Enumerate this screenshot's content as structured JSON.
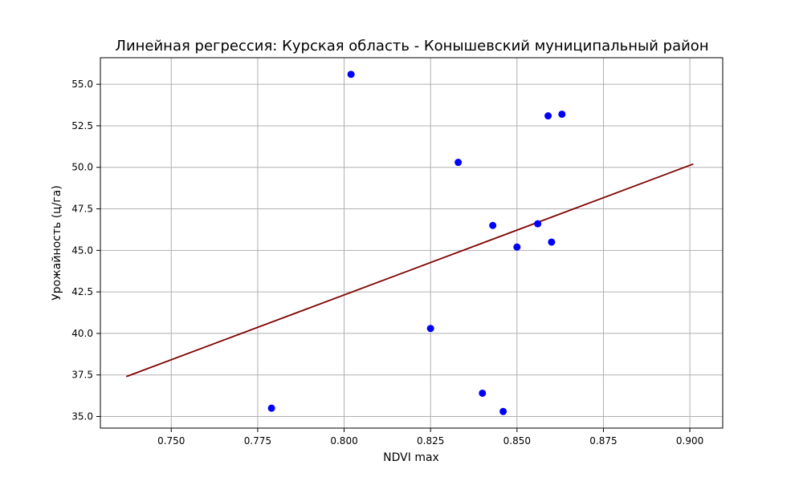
{
  "chart_data": {
    "type": "scatter",
    "title": "Линейная регрессия: Курская область - Конышевский муниципальный район",
    "xlabel": "NDVI max",
    "ylabel": "Урожайность (ц/га)",
    "xlim": [
      0.7295,
      0.9095
    ],
    "ylim": [
      34.3,
      56.6
    ],
    "xticks": [
      0.75,
      0.775,
      0.8,
      0.825,
      0.85,
      0.875,
      0.9
    ],
    "xtick_labels": [
      "0.750",
      "0.775",
      "0.800",
      "0.825",
      "0.850",
      "0.875",
      "0.900"
    ],
    "yticks": [
      35.0,
      37.5,
      40.0,
      42.5,
      45.0,
      47.5,
      50.0,
      52.5,
      55.0
    ],
    "ytick_labels": [
      "35.0",
      "37.5",
      "40.0",
      "42.5",
      "45.0",
      "47.5",
      "50.0",
      "52.5",
      "55.0"
    ],
    "grid": true,
    "points": {
      "color": "#0000ff",
      "x": [
        0.779,
        0.802,
        0.825,
        0.833,
        0.84,
        0.843,
        0.846,
        0.85,
        0.856,
        0.859,
        0.86,
        0.863
      ],
      "y": [
        35.5,
        55.6,
        40.3,
        50.3,
        36.4,
        46.5,
        35.3,
        45.2,
        46.6,
        53.1,
        45.5,
        53.2
      ]
    },
    "regression_line": {
      "color": "#800000",
      "x": [
        0.737,
        0.901
      ],
      "y": [
        37.4,
        50.2
      ]
    }
  }
}
